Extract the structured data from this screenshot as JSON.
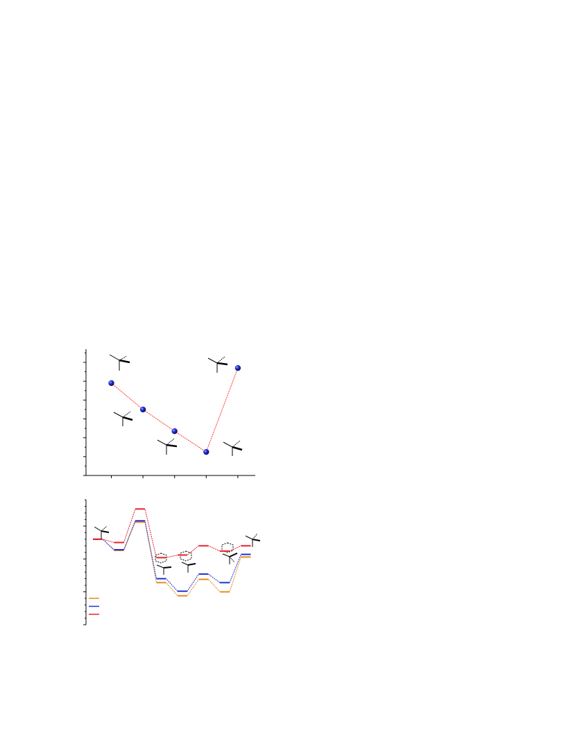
{
  "chart_data": [
    {
      "type": "line",
      "x": [
        1,
        2,
        3,
        4,
        5
      ],
      "series": [
        {
          "values": [
            4.9,
            3.5,
            2.35,
            1.25,
            5.7
          ]
        }
      ],
      "xlim": [
        0.2,
        5.55
      ],
      "ylim": [
        0,
        6.7
      ],
      "grid": false,
      "colors": {
        "line": "#ff3b2f",
        "marker": "#1f2fd6",
        "axis": "#000000"
      },
      "structures": [
        "tbu-top-left",
        "tbu-mid-left",
        "tbu-mid",
        "tbu-lower-right",
        "tbu-top-right"
      ]
    },
    {
      "type": "line",
      "x_steps": 8,
      "series": [
        {
          "color": "#e8891a",
          "values": [
            8.0,
            6.3,
            10.6,
            1.4,
            -0.6,
            1.9,
            0.0,
            5.3
          ]
        },
        {
          "color": "#1f2fd6",
          "values": [
            8.0,
            6.4,
            10.8,
            2.0,
            0.1,
            2.7,
            1.4,
            5.7
          ]
        },
        {
          "color": "#e8202a",
          "values": [
            8.0,
            7.5,
            12.6,
            5.2,
            5.6,
            7.0,
            6.2,
            7.0
          ]
        }
      ],
      "ylim": [
        -5.0,
        14.0
      ],
      "grid": false,
      "legend": {
        "position": "bottom-left",
        "entries": 3
      },
      "structures": [
        "complex-1",
        "complex-2",
        "complex-3",
        "complex-4",
        "complex-5"
      ]
    }
  ]
}
